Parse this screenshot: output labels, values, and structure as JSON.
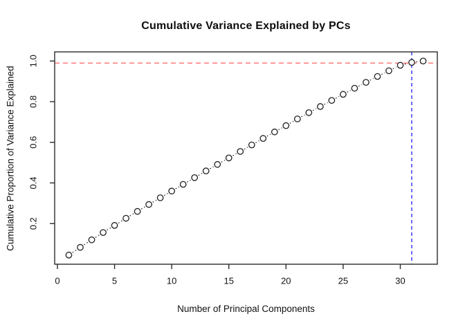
{
  "title": "Cumulative Variance Explained by PCs",
  "chart_data": {
    "type": "scatter",
    "title": "Cumulative Variance Explained by PCs",
    "xlabel": "Number of Principal Components",
    "ylabel": "Cumulative Proportion of Variance Explained",
    "x": [
      1,
      2,
      3,
      4,
      5,
      6,
      7,
      8,
      9,
      10,
      11,
      12,
      13,
      14,
      15,
      16,
      17,
      18,
      19,
      20,
      21,
      22,
      23,
      24,
      25,
      26,
      27,
      28,
      29,
      30,
      31,
      32
    ],
    "y": [
      0.045,
      0.083,
      0.12,
      0.156,
      0.191,
      0.226,
      0.26,
      0.294,
      0.327,
      0.36,
      0.393,
      0.426,
      0.459,
      0.491,
      0.523,
      0.555,
      0.587,
      0.619,
      0.651,
      0.682,
      0.715,
      0.746,
      0.776,
      0.806,
      0.836,
      0.866,
      0.895,
      0.924,
      0.952,
      0.979,
      0.993,
      1.0
    ],
    "xticks": [
      0,
      5,
      10,
      15,
      20,
      25,
      30
    ],
    "xtick_labels": [
      "0",
      "5",
      "10",
      "15",
      "20",
      "25",
      "30"
    ],
    "yticks": [
      0.2,
      0.4,
      0.6,
      0.8,
      1.0
    ],
    "ytick_labels": [
      "0.2",
      "0.4",
      "0.6",
      "0.8",
      "1.0"
    ],
    "xlim": [
      -0.24,
      33.24
    ],
    "ylim": [
      0,
      1.045
    ],
    "grid": false,
    "legend": false,
    "marker": "open-circle",
    "series_line_style": "dotted",
    "series_color": "#1f1f1f",
    "reference_lines": [
      {
        "orientation": "horizontal",
        "value": 0.99,
        "color": "#fb6f6a",
        "style": "dashed",
        "name": "variance-threshold-line"
      },
      {
        "orientation": "vertical",
        "value": 31,
        "color": "#2b2bff",
        "style": "dashed",
        "name": "selected-pc-line"
      }
    ],
    "axis_color": "#2a2a2a",
    "tick_label_color": "#111111"
  }
}
